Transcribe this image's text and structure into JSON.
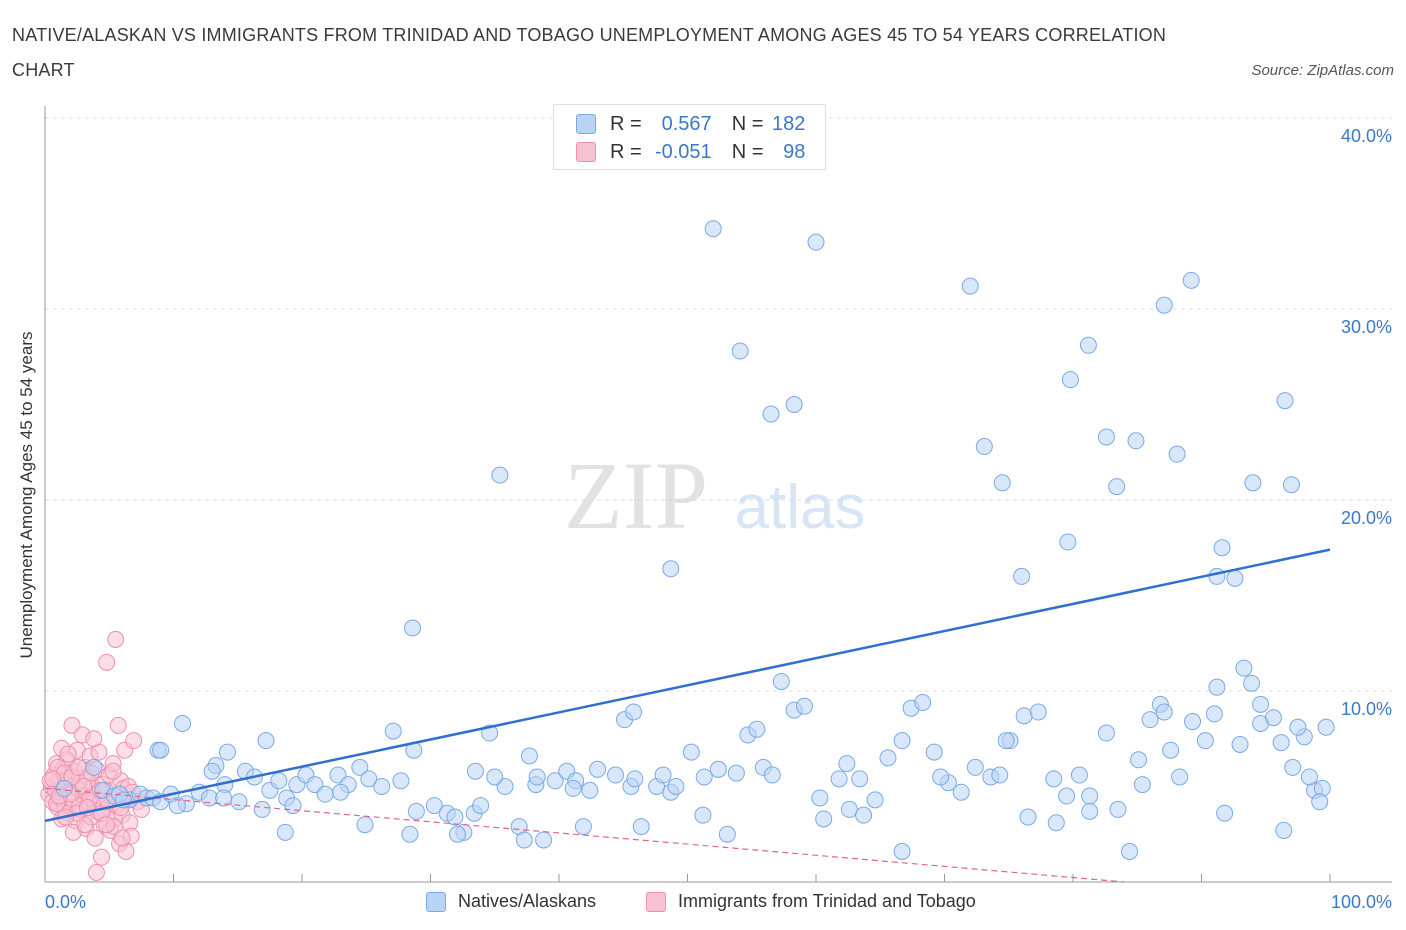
{
  "title": "NATIVE/ALASKAN VS IMMIGRANTS FROM TRINIDAD AND TOBAGO UNEMPLOYMENT AMONG AGES 45 TO 54 YEARS CORRELATION CHART",
  "source": "Source: ZipAtlas.com",
  "watermark": {
    "zip": "ZIP",
    "atlas": "atlas"
  },
  "legend": {
    "r_label": "R =",
    "n_label": "N =",
    "series1": {
      "r": "0.567",
      "n": "182"
    },
    "series2": {
      "r": "-0.051",
      "n": "98"
    }
  },
  "colors": {
    "blue_fill": "#b9d3f5",
    "blue_stroke": "#7aaae5",
    "blue_line": "#2f6fcd",
    "pink_fill": "#f7c3d3",
    "pink_stroke": "#ee8fae",
    "pink_line": "#e0658c",
    "axis_text": "#3b78c9",
    "grid": "#dddddd"
  },
  "chart_data": {
    "type": "scatter",
    "title": "NATIVE/ALASKAN VS IMMIGRANTS FROM TRINIDAD AND TOBAGO UNEMPLOYMENT AMONG AGES 45 TO 54 YEARS CORRELATION CHART",
    "xlabel": "",
    "ylabel": "Unemployment Among Ages 45 to 54 years",
    "xlim": [
      0,
      100
    ],
    "ylim": [
      0,
      40
    ],
    "x_tick_labels": [
      "0.0%",
      "100.0%"
    ],
    "y_ticks": [
      10,
      20,
      30,
      40
    ],
    "y_tick_labels": [
      "10.0%",
      "20.0%",
      "30.0%",
      "40.0%"
    ],
    "grid": true,
    "series": [
      {
        "name": "Natives/Alaskans",
        "color": "#7aaae5",
        "R": 0.567,
        "N": 182,
        "trend": {
          "x": [
            0,
            100
          ],
          "y": [
            3.2,
            17.4
          ]
        },
        "points": [
          [
            1.5,
            4.9
          ],
          [
            3.8,
            6.0
          ],
          [
            4.5,
            4.8
          ],
          [
            5.4,
            4.5
          ],
          [
            6.6,
            4.3
          ],
          [
            7.4,
            4.6
          ],
          [
            5.8,
            4.6
          ],
          [
            7.9,
            4.4
          ],
          [
            8.4,
            4.4
          ],
          [
            9.0,
            4.2
          ],
          [
            9.8,
            4.6
          ],
          [
            11.0,
            4.1
          ],
          [
            10.3,
            4.0
          ],
          [
            12.0,
            4.7
          ],
          [
            12.8,
            4.4
          ],
          [
            14.0,
            5.1
          ],
          [
            15.1,
            4.2
          ],
          [
            13.3,
            6.1
          ],
          [
            14.2,
            6.8
          ],
          [
            15.6,
            5.8
          ],
          [
            16.3,
            5.5
          ],
          [
            16.9,
            3.8
          ],
          [
            17.5,
            4.8
          ],
          [
            18.2,
            5.3
          ],
          [
            18.8,
            4.4
          ],
          [
            19.3,
            4.0
          ],
          [
            19.6,
            5.1
          ],
          [
            20.3,
            5.6
          ],
          [
            21.0,
            5.1
          ],
          [
            21.8,
            4.6
          ],
          [
            22.8,
            5.6
          ],
          [
            23.6,
            5.1
          ],
          [
            24.5,
            6.0
          ],
          [
            25.2,
            5.4
          ],
          [
            26.2,
            5.0
          ],
          [
            27.1,
            7.9
          ],
          [
            28.7,
            6.9
          ],
          [
            30.3,
            4.0
          ],
          [
            31.3,
            3.6
          ],
          [
            32.6,
            2.6
          ],
          [
            33.5,
            5.8
          ],
          [
            34.6,
            7.8
          ],
          [
            35.8,
            5.0
          ],
          [
            36.9,
            2.9
          ],
          [
            37.3,
            2.2
          ],
          [
            38.2,
            5.1
          ],
          [
            38.8,
            2.2
          ],
          [
            39.7,
            5.3
          ],
          [
            40.6,
            5.8
          ],
          [
            41.3,
            5.3
          ],
          [
            41.9,
            2.9
          ],
          [
            44.4,
            5.6
          ],
          [
            45.1,
            8.5
          ],
          [
            45.6,
            5.0
          ],
          [
            46.4,
            2.9
          ],
          [
            47.6,
            5.0
          ],
          [
            48.1,
            5.6
          ],
          [
            48.7,
            4.7
          ],
          [
            50.3,
            6.8
          ],
          [
            51.3,
            5.5
          ],
          [
            52.4,
            5.9
          ],
          [
            53.8,
            5.7
          ],
          [
            54.7,
            7.7
          ],
          [
            55.4,
            8.0
          ],
          [
            55.9,
            6.0
          ],
          [
            56.6,
            5.6
          ],
          [
            57.3,
            10.5
          ],
          [
            58.3,
            9.0
          ],
          [
            59.1,
            9.2
          ],
          [
            60.3,
            4.4
          ],
          [
            61.8,
            5.4
          ],
          [
            62.4,
            6.2
          ],
          [
            63.4,
            5.4
          ],
          [
            64.6,
            4.3
          ],
          [
            65.6,
            6.5
          ],
          [
            66.7,
            7.4
          ],
          [
            67.4,
            9.1
          ],
          [
            68.3,
            9.4
          ],
          [
            69.2,
            6.8
          ],
          [
            70.3,
            5.2
          ],
          [
            71.3,
            4.7
          ],
          [
            72.4,
            6.0
          ],
          [
            73.6,
            5.5
          ],
          [
            74.3,
            5.6
          ],
          [
            75.1,
            7.4
          ],
          [
            76.2,
            8.7
          ],
          [
            77.3,
            8.9
          ],
          [
            78.7,
            3.1
          ],
          [
            79.5,
            4.5
          ],
          [
            80.5,
            5.6
          ],
          [
            81.3,
            4.5
          ],
          [
            82.6,
            7.8
          ],
          [
            83.5,
            3.8
          ],
          [
            84.4,
            1.6
          ],
          [
            85.1,
            6.4
          ],
          [
            86.0,
            8.5
          ],
          [
            86.8,
            9.3
          ],
          [
            87.6,
            6.9
          ],
          [
            88.3,
            5.5
          ],
          [
            89.3,
            8.4
          ],
          [
            90.3,
            7.4
          ],
          [
            91.0,
            8.8
          ],
          [
            91.8,
            3.6
          ],
          [
            93.0,
            7.2
          ],
          [
            93.9,
            10.4
          ],
          [
            94.6,
            8.3
          ],
          [
            95.6,
            8.6
          ],
          [
            96.4,
            2.7
          ],
          [
            97.1,
            6.0
          ],
          [
            98.0,
            7.6
          ],
          [
            98.8,
            4.8
          ],
          [
            99.7,
            8.1
          ],
          [
            8.8,
            6.9
          ],
          [
            13.0,
            5.8
          ],
          [
            6.1,
            4.3
          ],
          [
            23.0,
            4.7
          ],
          [
            27.7,
            5.3
          ],
          [
            35.0,
            5.5
          ],
          [
            33.4,
            3.6
          ],
          [
            9.0,
            6.9
          ],
          [
            13.9,
            4.4
          ],
          [
            10.7,
            8.3
          ],
          [
            18.7,
            2.6
          ],
          [
            24.9,
            3.0
          ],
          [
            28.4,
            2.5
          ],
          [
            32.1,
            2.5
          ],
          [
            28.9,
            3.7
          ],
          [
            31.9,
            3.4
          ],
          [
            41.1,
            4.9
          ],
          [
            38.3,
            5.5
          ],
          [
            42.4,
            4.8
          ],
          [
            45.8,
            8.9
          ],
          [
            17.2,
            7.4
          ],
          [
            28.6,
            13.3
          ],
          [
            33.9,
            4.0
          ],
          [
            37.7,
            6.6
          ],
          [
            43.0,
            5.9
          ],
          [
            45.9,
            5.4
          ],
          [
            49.1,
            5.0
          ],
          [
            51.2,
            3.5
          ],
          [
            53.1,
            2.5
          ],
          [
            60.6,
            3.3
          ],
          [
            62.6,
            3.8
          ],
          [
            63.7,
            3.5
          ],
          [
            66.7,
            1.6
          ],
          [
            69.7,
            5.5
          ],
          [
            74.8,
            7.4
          ],
          [
            76.5,
            3.4
          ],
          [
            78.5,
            5.4
          ],
          [
            81.3,
            3.7
          ],
          [
            85.4,
            5.1
          ],
          [
            87.1,
            8.9
          ],
          [
            91.2,
            10.2
          ],
          [
            94.6,
            9.3
          ],
          [
            96.2,
            7.3
          ],
          [
            98.4,
            5.5
          ],
          [
            99.4,
            4.9
          ],
          [
            97.5,
            8.1
          ],
          [
            93.3,
            11.2
          ],
          [
            99.2,
            4.2
          ],
          [
            52.0,
            34.2
          ],
          [
            60.0,
            33.5
          ],
          [
            72.0,
            31.2
          ],
          [
            89.2,
            31.5
          ],
          [
            87.1,
            30.2
          ],
          [
            81.2,
            28.1
          ],
          [
            79.8,
            26.3
          ],
          [
            54.1,
            27.8
          ],
          [
            58.3,
            25.0
          ],
          [
            56.5,
            24.5
          ],
          [
            82.6,
            23.3
          ],
          [
            84.9,
            23.1
          ],
          [
            96.5,
            25.2
          ],
          [
            73.1,
            22.8
          ],
          [
            88.1,
            22.4
          ],
          [
            35.4,
            21.3
          ],
          [
            74.5,
            20.9
          ],
          [
            83.4,
            20.7
          ],
          [
            94.0,
            20.9
          ],
          [
            97.0,
            20.8
          ],
          [
            79.6,
            17.8
          ],
          [
            91.6,
            17.5
          ],
          [
            48.7,
            16.4
          ],
          [
            76.0,
            16.0
          ],
          [
            91.2,
            16.0
          ],
          [
            92.6,
            15.9
          ]
        ]
      },
      {
        "name": "Immigrants from Trinidad and Tobago",
        "color": "#ee8fae",
        "R": -0.051,
        "N": 98,
        "trend": {
          "x": [
            0,
            84
          ],
          "y": [
            4.9,
            0.0
          ]
        },
        "points": [
          [
            0.3,
            4.6
          ],
          [
            0.5,
            5.0
          ],
          [
            0.6,
            4.2
          ],
          [
            0.7,
            5.6
          ],
          [
            0.8,
            4.8
          ],
          [
            0.9,
            6.2
          ],
          [
            1.0,
            3.9
          ],
          [
            1.1,
            5.3
          ],
          [
            1.2,
            4.4
          ],
          [
            1.3,
            7.0
          ],
          [
            1.4,
            5.9
          ],
          [
            1.5,
            4.0
          ],
          [
            1.6,
            5.1
          ],
          [
            1.7,
            6.4
          ],
          [
            1.8,
            3.6
          ],
          [
            1.9,
            4.7
          ],
          [
            2.0,
            5.4
          ],
          [
            2.1,
            8.2
          ],
          [
            2.2,
            4.3
          ],
          [
            2.3,
            5.8
          ],
          [
            2.4,
            3.2
          ],
          [
            2.5,
            6.9
          ],
          [
            2.6,
            4.9
          ],
          [
            2.7,
            5.2
          ],
          [
            2.8,
            3.8
          ],
          [
            2.9,
            7.7
          ],
          [
            3.0,
            4.5
          ],
          [
            3.1,
            6.0
          ],
          [
            3.2,
            2.8
          ],
          [
            3.3,
            5.5
          ],
          [
            3.4,
            4.1
          ],
          [
            3.5,
            6.6
          ],
          [
            3.6,
            3.4
          ],
          [
            3.7,
            5.0
          ],
          [
            3.8,
            4.6
          ],
          [
            3.9,
            2.3
          ],
          [
            4.0,
            5.9
          ],
          [
            4.1,
            3.7
          ],
          [
            4.2,
            6.8
          ],
          [
            4.3,
            4.2
          ],
          [
            4.4,
            1.3
          ],
          [
            4.5,
            5.1
          ],
          [
            4.6,
            3.0
          ],
          [
            4.7,
            4.8
          ],
          [
            4.8,
            11.5
          ],
          [
            4.9,
            3.9
          ],
          [
            5.0,
            5.6
          ],
          [
            5.1,
            2.7
          ],
          [
            5.2,
            4.4
          ],
          [
            5.3,
            6.2
          ],
          [
            5.4,
            3.3
          ],
          [
            5.5,
            12.7
          ],
          [
            5.6,
            4.0
          ],
          [
            5.7,
            8.2
          ],
          [
            5.8,
            2.0
          ],
          [
            5.9,
            5.3
          ],
          [
            6.0,
            3.5
          ],
          [
            6.1,
            4.9
          ],
          [
            6.2,
            6.9
          ],
          [
            6.3,
            1.6
          ],
          [
            6.4,
            4.3
          ],
          [
            6.5,
            5.0
          ],
          [
            6.6,
            3.1
          ],
          [
            6.7,
            2.4
          ],
          [
            6.8,
            4.7
          ],
          [
            0.4,
            5.3
          ],
          [
            0.9,
            4.1
          ],
          [
            1.3,
            3.3
          ],
          [
            1.8,
            6.7
          ],
          [
            2.2,
            2.6
          ],
          [
            2.7,
            4.0
          ],
          [
            3.1,
            3.0
          ],
          [
            3.6,
            5.7
          ],
          [
            4.0,
            0.5
          ],
          [
            4.4,
            3.6
          ],
          [
            4.9,
            4.2
          ],
          [
            5.4,
            2.9
          ],
          [
            5.9,
            3.9
          ],
          [
            1.0,
            6.0
          ],
          [
            1.5,
            5.7
          ],
          [
            2.0,
            4.6
          ],
          [
            2.5,
            3.6
          ],
          [
            3.0,
            5.0
          ],
          [
            3.5,
            4.4
          ],
          [
            0.6,
            5.4
          ],
          [
            1.1,
            4.5
          ],
          [
            1.6,
            3.4
          ],
          [
            2.1,
            5.5
          ],
          [
            2.6,
            6.0
          ],
          [
            3.3,
            3.9
          ],
          [
            3.8,
            7.5
          ],
          [
            4.3,
            4.8
          ],
          [
            4.8,
            3.0
          ],
          [
            5.3,
            5.8
          ],
          [
            6.0,
            2.3
          ],
          [
            6.9,
            7.4
          ],
          [
            7.2,
            4.2
          ],
          [
            7.5,
            3.8
          ]
        ]
      }
    ]
  },
  "bottom_legend": {
    "series1_label": "Natives/Alaskans",
    "series2_label": "Immigrants from Trinidad and Tobago"
  }
}
